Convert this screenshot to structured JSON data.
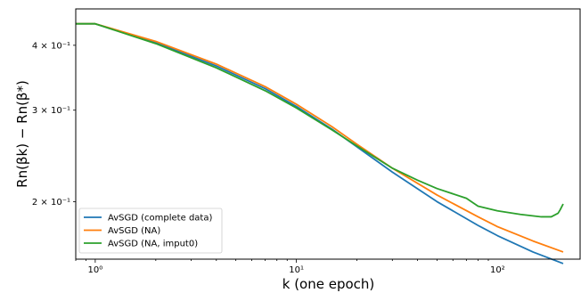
{
  "chart_data": {
    "type": "line",
    "title": "",
    "xlabel": "k (one epoch)",
    "ylabel": "Rn(βk) − Rn(β*)",
    "x_scale": "log",
    "y_scale": "log",
    "xlim": [
      0.8,
      260
    ],
    "ylim": [
      0.155,
      0.47
    ],
    "x_ticks": [
      {
        "value": 1,
        "label": "10⁰"
      },
      {
        "value": 10,
        "label": "10¹"
      },
      {
        "value": 100,
        "label": "10²"
      }
    ],
    "y_ticks": [
      {
        "value": 0.2,
        "label": "2 × 10⁻¹"
      },
      {
        "value": 0.3,
        "label": "3 × 10⁻¹"
      },
      {
        "value": 0.4,
        "label": "4 × 10⁻¹"
      }
    ],
    "grid": false,
    "legend_position": "lower-left",
    "series": [
      {
        "name": "AvSGD (complete data)",
        "color": "#1f77b4",
        "points": [
          [
            0.8,
            0.44
          ],
          [
            1,
            0.44
          ],
          [
            2,
            0.405
          ],
          [
            4,
            0.365
          ],
          [
            7,
            0.33
          ],
          [
            10,
            0.305
          ],
          [
            15,
            0.276
          ],
          [
            20,
            0.255
          ],
          [
            30,
            0.228
          ],
          [
            50,
            0.2
          ],
          [
            80,
            0.18
          ],
          [
            100,
            0.172
          ],
          [
            150,
            0.16
          ],
          [
            212,
            0.152
          ]
        ]
      },
      {
        "name": "AvSGD (NA)",
        "color": "#ff7f0e",
        "points": [
          [
            0.8,
            0.44
          ],
          [
            1,
            0.44
          ],
          [
            2,
            0.407
          ],
          [
            4,
            0.368
          ],
          [
            7,
            0.333
          ],
          [
            10,
            0.308
          ],
          [
            15,
            0.279
          ],
          [
            20,
            0.258
          ],
          [
            30,
            0.232
          ],
          [
            50,
            0.206
          ],
          [
            80,
            0.187
          ],
          [
            100,
            0.179
          ],
          [
            150,
            0.168
          ],
          [
            212,
            0.16
          ]
        ]
      },
      {
        "name": "AvSGD (NA, imput0)",
        "color": "#2ca02c",
        "points": [
          [
            0.8,
            0.44
          ],
          [
            1,
            0.44
          ],
          [
            2,
            0.403
          ],
          [
            4,
            0.362
          ],
          [
            7,
            0.327
          ],
          [
            10,
            0.303
          ],
          [
            15,
            0.275
          ],
          [
            20,
            0.256
          ],
          [
            30,
            0.232
          ],
          [
            40,
            0.22
          ],
          [
            50,
            0.212
          ],
          [
            70,
            0.203
          ],
          [
            80,
            0.196
          ],
          [
            100,
            0.192
          ],
          [
            130,
            0.189
          ],
          [
            165,
            0.187
          ],
          [
            185,
            0.187
          ],
          [
            200,
            0.19
          ],
          [
            205,
            0.193
          ],
          [
            212,
            0.198
          ]
        ]
      }
    ]
  }
}
